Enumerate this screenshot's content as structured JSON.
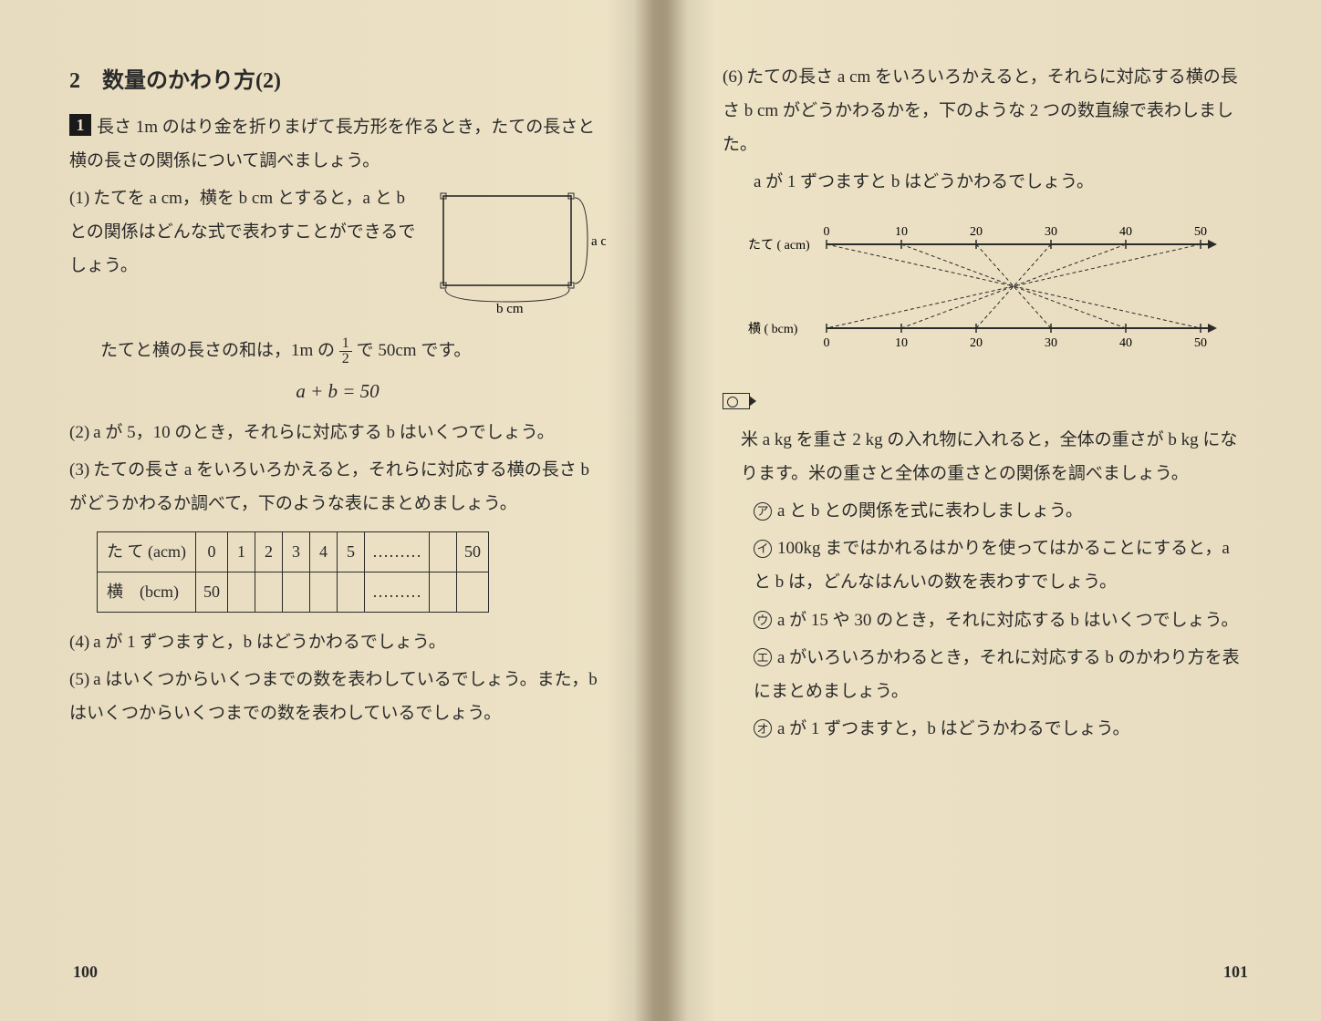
{
  "left": {
    "section_title": "2　数量のかわり方(2)",
    "intro_box_num": "1",
    "intro": "長さ 1m のはり金を折りまげて長方形を作るとき，たての長さと横の長さの関係について調べましょう。",
    "q1_num": "(1)",
    "q1": "たてを a cm，横を b cm とすると，a と b との関係はどんな式で表わすことができるでしょう。",
    "rect_a_label": "a cm",
    "rect_b_label": "b cm",
    "note1": "たてと横の長さの和は，1m の ",
    "note1_after": " で 50cm です。",
    "formula": "a + b = 50",
    "q2_num": "(2)",
    "q2": "a が 5，10 のとき，それらに対応する b はいくつでしょう。",
    "q3_num": "(3)",
    "q3": "たての長さ a をいろいろかえると，それらに対応する横の長さ b がどうかわるか調べて，下のような表にまとめましょう。",
    "table": {
      "header_tate": "た て (acm)",
      "header_yoko": "横　(bcm)",
      "tate_vals": [
        "0",
        "1",
        "2",
        "3",
        "4",
        "5",
        "………",
        "",
        "50"
      ],
      "yoko_vals": [
        "50",
        "",
        "",
        "",
        "",
        "",
        "………",
        "",
        ""
      ]
    },
    "q4_num": "(4)",
    "q4": "a が 1 ずつますと，b はどうかわるでしょう。",
    "q5_num": "(5)",
    "q5": "a はいくつからいくつまでの数を表わしているでしょう。また，b はいくつからいくつまでの数を表わしているでしょう。",
    "page_num": "100"
  },
  "right": {
    "q6_num": "(6)",
    "q6": "たての長さ a cm をいろいろかえると，それらに対応する横の長さ b cm がどうかわるかを，下のような 2 つの数直線で表わしました。",
    "q6_sub": "a が 1 ずつますと b はどうかわるでしょう。",
    "numberline": {
      "top_label": "たて ( acm)",
      "bot_label": "横 ( bcm)",
      "ticks": [
        0,
        10,
        20,
        30,
        40,
        50
      ],
      "pairs": [
        [
          0,
          50
        ],
        [
          10,
          40
        ],
        [
          20,
          30
        ],
        [
          30,
          20
        ],
        [
          40,
          10
        ],
        [
          50,
          0
        ]
      ],
      "tick_color": "#2a2a2a",
      "line_color": "#2a2a2a",
      "dash": "4,3",
      "fontsize": 14
    },
    "prob2_intro": "米 a kg を重さ 2 kg の入れ物に入れると，全体の重さが b kg になります。米の重さと全体の重さとの関係を調べましょう。",
    "sub_a_mark": "ア",
    "sub_a": "a と b との関係を式に表わしましょう。",
    "sub_i_mark": "イ",
    "sub_i": "100kg まではかれるはかりを使ってはかることにすると，a と b は，どんなはんいの数を表わすでしょう。",
    "sub_u_mark": "ウ",
    "sub_u": "a が 15 や 30 のとき，それに対応する b はいくつでしょう。",
    "sub_e_mark": "エ",
    "sub_e": "a がいろいろかわるとき，それに対応する b のかわり方を表にまとめましょう。",
    "sub_o_mark": "オ",
    "sub_o": "a が 1 ずつますと，b はどうかわるでしょう。",
    "page_num": "101"
  }
}
